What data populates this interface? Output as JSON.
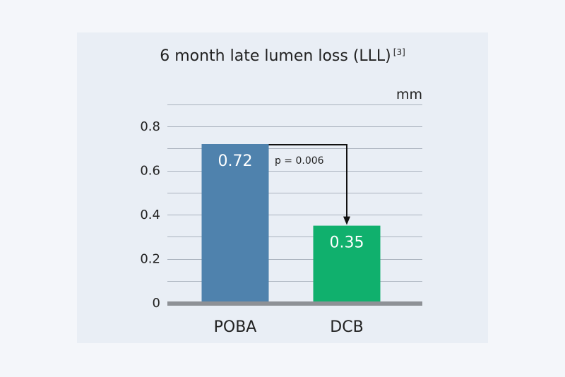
{
  "chart_data": {
    "type": "bar",
    "title": "6 month late lumen loss (LLL)",
    "title_citation": "[3]",
    "unit_label": "mm",
    "categories": [
      "POBA",
      "DCB"
    ],
    "values": [
      0.72,
      0.35
    ],
    "value_labels": [
      "0.72",
      "0.35"
    ],
    "colors": [
      "#4f82ad",
      "#10b06d"
    ],
    "ylim": [
      0,
      0.8
    ],
    "yticks": [
      0,
      0.2,
      0.4,
      0.6,
      0.8
    ],
    "ytick_labels": [
      "0",
      "0.2",
      "0.4",
      "0.6",
      "0.8"
    ],
    "grid": true,
    "annotation": {
      "text": "p = 0.006",
      "from": "POBA",
      "to": "DCB",
      "arrow": true
    }
  }
}
